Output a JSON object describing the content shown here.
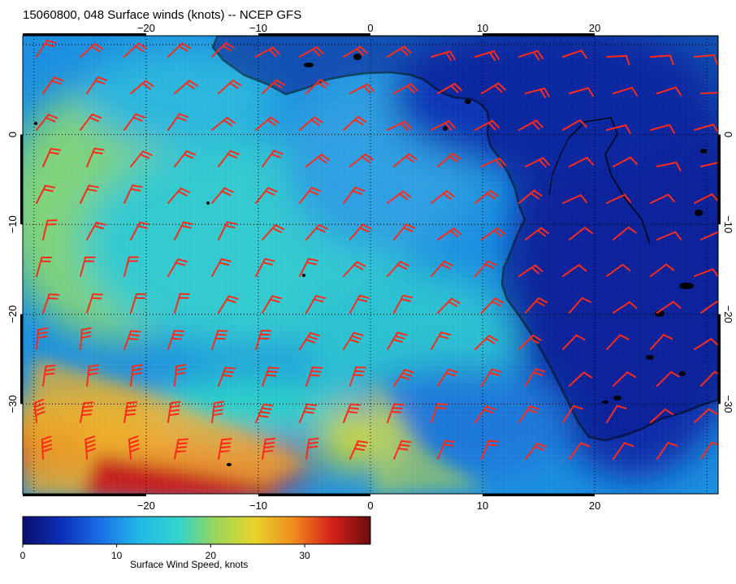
{
  "title": "15060800, 048 Surface winds (knots) -- NCEP GFS",
  "map": {
    "lon_range": [
      -31,
      31
    ],
    "lat_range": [
      11,
      -40
    ],
    "lon_ticks": [
      -20,
      -10,
      0,
      10,
      20
    ],
    "lon_tick_labels": [
      "−20",
      "−10",
      "0",
      "10",
      "20"
    ],
    "lat_ticks": [
      0,
      -10,
      -20,
      -30
    ],
    "lat_tick_labels": [
      "0",
      "−10",
      "−20",
      "−30"
    ],
    "gridlines": "dotted",
    "barb_color": "#ff2a1a",
    "coast_color": "#000000"
  },
  "colorbar": {
    "label": "Surface Wind Speed, knots",
    "min": 0,
    "max": 37,
    "ticks": [
      0,
      10,
      20,
      30
    ],
    "tick_labels": [
      "0",
      "10",
      "20",
      "30"
    ],
    "stops": [
      "#0a0f6e",
      "#0d2fb8",
      "#1a6ee6",
      "#22b8e8",
      "#2ed4cf",
      "#9ad65a",
      "#e8d52a",
      "#f08c1e",
      "#d6201a",
      "#6b0c0c"
    ]
  }
}
